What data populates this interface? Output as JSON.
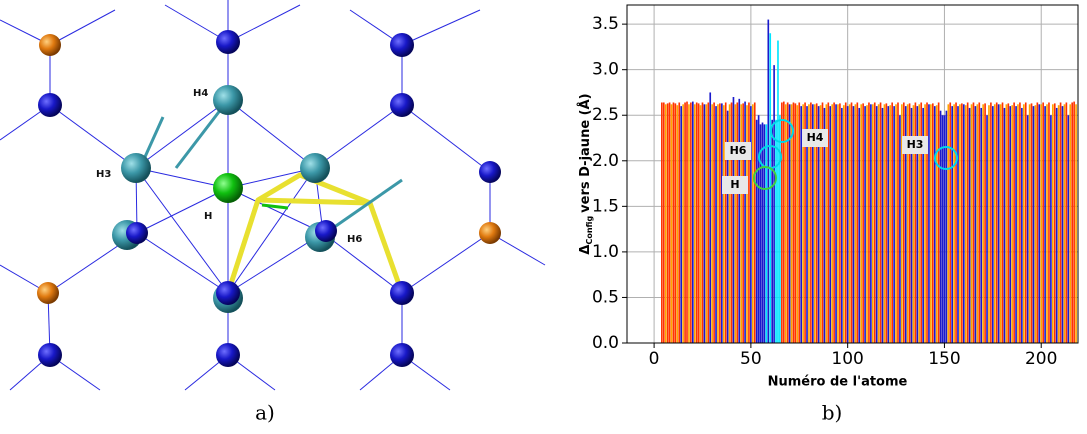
{
  "panel_a": {
    "labels": [
      "H4",
      "H3",
      "H",
      "H6"
    ],
    "caption": "a)"
  },
  "chart_data": {
    "type": "bar",
    "caption": "b)",
    "xlabel": "Numéro de l'atome",
    "ylabel": {
      "symbol": "Δ",
      "subscript": "Config",
      "text": "vers D-jaune (Å)"
    },
    "xlim": [
      -14,
      219
    ],
    "xticks": [
      0,
      50,
      100,
      150,
      200
    ],
    "ylim": [
      0,
      3.71
    ],
    "yticks": [
      {
        "value": 0,
        "label": "0.0"
      },
      0.5,
      {
        "value": 1,
        "label": "1.0"
      },
      1.5,
      {
        "value": 2,
        "label": "2.0"
      },
      2.5,
      {
        "value": 3,
        "label": "3.0"
      },
      3.5
    ],
    "grid": true,
    "annotations": [
      {
        "text": "H6"
      },
      {
        "text": "H4"
      },
      {
        "text": "H3"
      },
      {
        "text": "H"
      }
    ],
    "series": [
      {
        "color": "#ff3300",
        "x": [
          4,
          5,
          7,
          8,
          10,
          11,
          13,
          16,
          17,
          19,
          22,
          23,
          25,
          28,
          31,
          34,
          37,
          40,
          43,
          46,
          49,
          52,
          66,
          67,
          69,
          72,
          73,
          75,
          78,
          81,
          84,
          87,
          90,
          93,
          96,
          99,
          102,
          105,
          108,
          111,
          114,
          117,
          120,
          123,
          126,
          129,
          132,
          135,
          138,
          141,
          144,
          147,
          153,
          156,
          159,
          162,
          165,
          168,
          171,
          174,
          177,
          180,
          183,
          186,
          189,
          192,
          195,
          198,
          201,
          204,
          207,
          210,
          213,
          216,
          217
        ],
        "values": [
          2.64,
          2.64,
          2.63,
          2.64,
          2.64,
          2.63,
          2.64,
          2.64,
          2.65,
          2.64,
          2.64,
          2.63,
          2.64,
          2.64,
          2.64,
          2.63,
          2.64,
          2.64,
          2.64,
          2.63,
          2.64,
          2.64,
          2.64,
          2.65,
          2.64,
          2.64,
          2.63,
          2.64,
          2.64,
          2.64,
          2.63,
          2.64,
          2.64,
          2.64,
          2.63,
          2.64,
          2.64,
          2.64,
          2.63,
          2.64,
          2.64,
          2.64,
          2.63,
          2.64,
          2.64,
          2.64,
          2.63,
          2.64,
          2.64,
          2.64,
          2.63,
          2.64,
          2.64,
          2.64,
          2.63,
          2.64,
          2.64,
          2.64,
          2.63,
          2.64,
          2.64,
          2.64,
          2.63,
          2.64,
          2.64,
          2.64,
          2.63,
          2.64,
          2.64,
          2.64,
          2.63,
          2.64,
          2.64,
          2.64,
          2.65
        ]
      },
      {
        "color": "#ffa500",
        "x": [
          6,
          9,
          12,
          15,
          18,
          21,
          24,
          27,
          30,
          33,
          36,
          39,
          42,
          45,
          48,
          51,
          68,
          71,
          74,
          77,
          80,
          83,
          86,
          89,
          92,
          95,
          98,
          101,
          104,
          107,
          110,
          113,
          116,
          119,
          122,
          125,
          128,
          131,
          134,
          137,
          140,
          143,
          146,
          152,
          155,
          158,
          161,
          164,
          167,
          170,
          173,
          176,
          179,
          182,
          185,
          188,
          191,
          194,
          197,
          200,
          203,
          206,
          209,
          212,
          215,
          218
        ],
        "values": [
          2.62,
          2.62,
          2.61,
          2.62,
          2.62,
          2.62,
          2.61,
          2.62,
          2.62,
          2.62,
          2.61,
          2.62,
          2.62,
          2.62,
          2.61,
          2.62,
          2.62,
          2.62,
          2.61,
          2.62,
          2.62,
          2.62,
          2.61,
          2.62,
          2.62,
          2.62,
          2.61,
          2.62,
          2.62,
          2.62,
          2.61,
          2.62,
          2.62,
          2.62,
          2.61,
          2.62,
          2.62,
          2.62,
          2.61,
          2.62,
          2.62,
          2.62,
          2.61,
          2.62,
          2.62,
          2.62,
          2.61,
          2.62,
          2.62,
          2.62,
          2.61,
          2.62,
          2.62,
          2.62,
          2.61,
          2.62,
          2.62,
          2.62,
          2.61,
          2.62,
          2.62,
          2.62,
          2.61,
          2.62,
          2.62,
          2.62
        ]
      },
      {
        "color": "#1a1acc",
        "x": [
          14,
          20,
          26,
          29,
          32,
          35,
          38,
          41,
          44,
          47,
          50,
          53,
          54,
          55,
          56,
          57,
          59,
          61,
          62,
          70,
          76,
          79,
          82,
          85,
          88,
          91,
          94,
          97,
          100,
          103,
          106,
          109,
          112,
          115,
          118,
          121,
          124,
          127,
          130,
          133,
          136,
          139,
          142,
          145,
          148,
          149,
          150,
          151,
          154,
          157,
          160,
          163,
          166,
          169,
          172,
          175,
          178,
          181,
          184,
          187,
          190,
          193,
          196,
          199,
          202,
          205,
          208,
          211,
          214
        ],
        "values": [
          2.6,
          2.65,
          2.62,
          2.75,
          2.6,
          2.63,
          2.55,
          2.7,
          2.68,
          2.65,
          2.6,
          2.45,
          2.5,
          2.4,
          2.42,
          2.4,
          3.55,
          2.45,
          3.05,
          2.62,
          2.6,
          2.6,
          2.62,
          2.6,
          2.58,
          2.6,
          2.62,
          2.58,
          2.6,
          2.6,
          2.58,
          2.6,
          2.62,
          2.6,
          2.58,
          2.6,
          2.6,
          2.5,
          2.6,
          2.58,
          2.6,
          2.58,
          2.62,
          2.6,
          2.55,
          2.5,
          2.5,
          2.55,
          2.6,
          2.6,
          2.62,
          2.58,
          2.6,
          2.58,
          2.5,
          2.6,
          2.62,
          2.58,
          2.6,
          2.6,
          2.58,
          2.5,
          2.6,
          2.62,
          2.6,
          2.5,
          2.58,
          2.6,
          2.5
        ]
      },
      {
        "color": "#00e5ff",
        "x": [
          58,
          60,
          63,
          64,
          65
        ],
        "values": [
          2.4,
          3.4,
          2.45,
          3.32,
          2.5
        ]
      }
    ]
  }
}
